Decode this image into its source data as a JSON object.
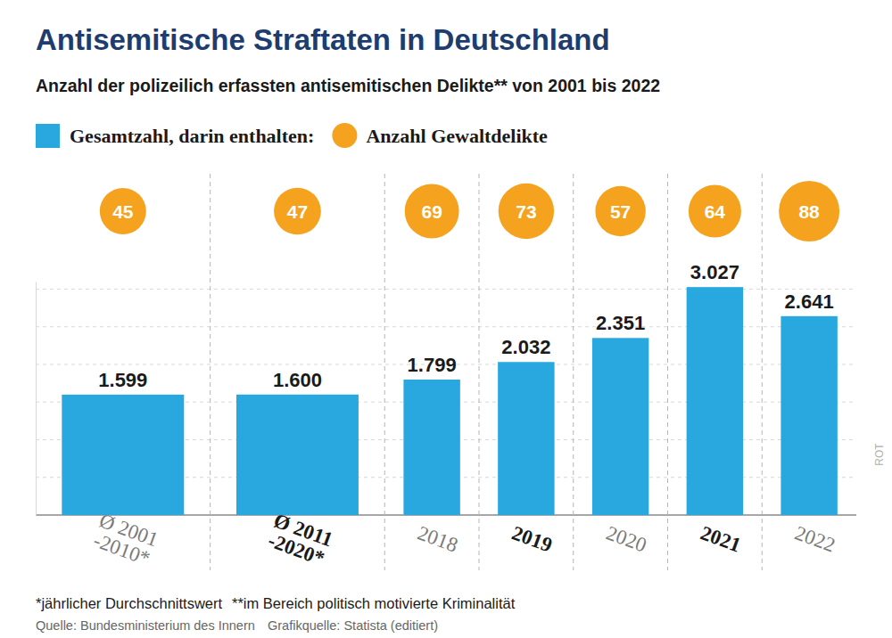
{
  "chart_data": {
    "type": "bar",
    "title": "Antisemitische Straftaten in Deutschland",
    "subtitle": "Anzahl der polizeilich erfassten antisemitischen Delikte** von 2001 bis 2022",
    "categories": [
      "Ø 2001\n-2010*",
      "Ø 2011\n-2020*",
      "2018",
      "2019",
      "2020",
      "2021",
      "2022"
    ],
    "series": [
      {
        "name": "Gesamtzahl, darin enthalten:",
        "type": "bar",
        "color": "#29a8e0",
        "values": [
          1599,
          1600,
          1799,
          2032,
          2351,
          3027,
          2641
        ],
        "value_labels": [
          "1.599",
          "1.600",
          "1.799",
          "2.032",
          "2.351",
          "3.027",
          "2.641"
        ]
      },
      {
        "name": "Anzahl Gewaltdelikte",
        "type": "scatter",
        "marker": "circle",
        "color": "#f5a31f",
        "values": [
          45,
          47,
          69,
          73,
          57,
          64,
          88
        ]
      }
    ],
    "ylim": [
      0,
      3100
    ],
    "yticks": [
      0,
      500,
      1000,
      1500,
      2000,
      2500,
      3000
    ],
    "grid": true,
    "tick_labels": false,
    "data_labels": true,
    "legend": "top-left",
    "annotations": [
      "*jährlicher Durchschnittswert",
      "**im Bereich politisch motivierte Kriminalität",
      "Quelle: Bundesministerium des Innern",
      "Grafikquelle: Statista (editiert)",
      "ROT"
    ]
  }
}
